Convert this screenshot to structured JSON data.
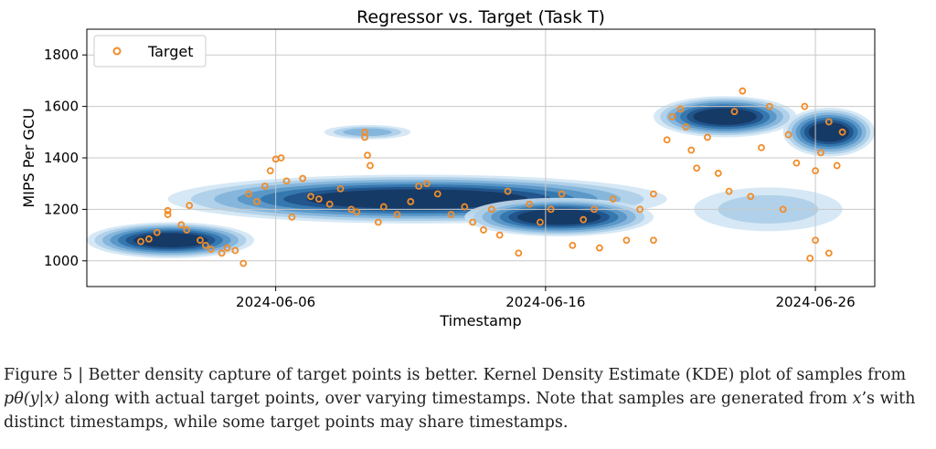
{
  "chart_data": {
    "type": "scatter",
    "title": "Regressor vs. Target (Task T)",
    "xlabel": "Timestamp",
    "ylabel": "MIPS Per GCU",
    "x_ticks": [
      "2024-06-06",
      "2024-06-16",
      "2024-06-26"
    ],
    "y_ticks": [
      1000,
      1200,
      1400,
      1600,
      1800
    ],
    "xlim": [
      "2024-05-30",
      "2024-06-28.2"
    ],
    "ylim": [
      900,
      1900
    ],
    "grid": true,
    "legend": {
      "position": "top-left",
      "entries": [
        "Target"
      ]
    },
    "colors": {
      "target": "#f28c28",
      "kde": [
        "#cfe4f3",
        "#a9cde6",
        "#7fb2d9",
        "#5393c4",
        "#2f71aa",
        "#1d4f86",
        "#14365f"
      ]
    },
    "series": [
      {
        "name": "Target",
        "marker": "open-circle",
        "points": [
          [
            "2024-06-01",
            1075
          ],
          [
            "2024-06-01.3",
            1085
          ],
          [
            "2024-06-01.6",
            1110
          ],
          [
            "2024-06-02",
            1180
          ],
          [
            "2024-06-02",
            1195
          ],
          [
            "2024-06-02.5",
            1140
          ],
          [
            "2024-06-02.7",
            1120
          ],
          [
            "2024-06-02.8",
            1215
          ],
          [
            "2024-06-03.2",
            1080
          ],
          [
            "2024-06-03.4",
            1060
          ],
          [
            "2024-06-03.6",
            1045
          ],
          [
            "2024-06-04",
            1030
          ],
          [
            "2024-06-04.2",
            1050
          ],
          [
            "2024-06-04.5",
            1040
          ],
          [
            "2024-06-04.8",
            990
          ],
          [
            "2024-06-05",
            1260
          ],
          [
            "2024-06-05.3",
            1230
          ],
          [
            "2024-06-05.6",
            1290
          ],
          [
            "2024-06-05.8",
            1350
          ],
          [
            "2024-06-06",
            1395
          ],
          [
            "2024-06-06.2",
            1400
          ],
          [
            "2024-06-06.4",
            1310
          ],
          [
            "2024-06-06.6",
            1170
          ],
          [
            "2024-06-07",
            1320
          ],
          [
            "2024-06-07.3",
            1250
          ],
          [
            "2024-06-07.6",
            1240
          ],
          [
            "2024-06-08",
            1220
          ],
          [
            "2024-06-08.4",
            1280
          ],
          [
            "2024-06-08.8",
            1200
          ],
          [
            "2024-06-09",
            1190
          ],
          [
            "2024-06-09.3",
            1500
          ],
          [
            "2024-06-09.3",
            1480
          ],
          [
            "2024-06-09.4",
            1410
          ],
          [
            "2024-06-09.5",
            1370
          ],
          [
            "2024-06-09.8",
            1150
          ],
          [
            "2024-06-10",
            1210
          ],
          [
            "2024-06-10.5",
            1180
          ],
          [
            "2024-06-11",
            1230
          ],
          [
            "2024-06-11.3",
            1290
          ],
          [
            "2024-06-11.6",
            1300
          ],
          [
            "2024-06-12",
            1260
          ],
          [
            "2024-06-12.5",
            1180
          ],
          [
            "2024-06-13",
            1210
          ],
          [
            "2024-06-13.3",
            1150
          ],
          [
            "2024-06-13.7",
            1120
          ],
          [
            "2024-06-14",
            1200
          ],
          [
            "2024-06-14.3",
            1100
          ],
          [
            "2024-06-14.6",
            1270
          ],
          [
            "2024-06-15",
            1030
          ],
          [
            "2024-06-15.4",
            1220
          ],
          [
            "2024-06-15.8",
            1150
          ],
          [
            "2024-06-16.2",
            1200
          ],
          [
            "2024-06-16.6",
            1260
          ],
          [
            "2024-06-17",
            1060
          ],
          [
            "2024-06-17.4",
            1160
          ],
          [
            "2024-06-17.8",
            1200
          ],
          [
            "2024-06-18",
            1050
          ],
          [
            "2024-06-18.5",
            1240
          ],
          [
            "2024-06-19",
            1080
          ],
          [
            "2024-06-19.5",
            1200
          ],
          [
            "2024-06-20",
            1080
          ],
          [
            "2024-06-20",
            1260
          ],
          [
            "2024-06-20.5",
            1470
          ],
          [
            "2024-06-20.7",
            1560
          ],
          [
            "2024-06-21",
            1590
          ],
          [
            "2024-06-21.2",
            1520
          ],
          [
            "2024-06-21.4",
            1430
          ],
          [
            "2024-06-21.6",
            1360
          ],
          [
            "2024-06-22",
            1480
          ],
          [
            "2024-06-22.4",
            1340
          ],
          [
            "2024-06-22.8",
            1270
          ],
          [
            "2024-06-23",
            1580
          ],
          [
            "2024-06-23.3",
            1660
          ],
          [
            "2024-06-23.6",
            1250
          ],
          [
            "2024-06-24",
            1440
          ],
          [
            "2024-06-24.3",
            1600
          ],
          [
            "2024-06-24.8",
            1200
          ],
          [
            "2024-06-25",
            1490
          ],
          [
            "2024-06-25.3",
            1380
          ],
          [
            "2024-06-25.6",
            1600
          ],
          [
            "2024-06-26",
            1350
          ],
          [
            "2024-06-26.2",
            1420
          ],
          [
            "2024-06-26",
            1080
          ],
          [
            "2024-06-25.8",
            1010
          ],
          [
            "2024-06-26.5",
            1540
          ],
          [
            "2024-06-26.8",
            1370
          ],
          [
            "2024-06-26.5",
            1030
          ],
          [
            "2024-06-27",
            1500
          ]
        ]
      }
    ]
  },
  "caption": {
    "label": "Figure 5 |",
    "lead": "Better density capture of target points is better.",
    "body1": "Kernel Density Estimate (KDE) plot of samples from ",
    "math1": "pθ(y|x)",
    "body2": " along with actual target points, over varying timestamps. Note that samples are generated from ",
    "math2": "x",
    "body3": "’s with distinct timestamps, while some target points may share timestamps."
  }
}
